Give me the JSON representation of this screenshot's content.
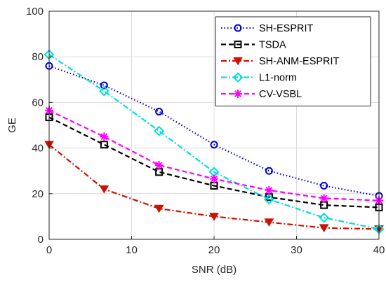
{
  "chart_data": {
    "type": "line",
    "title": "",
    "xlabel": "SNR (dB)",
    "ylabel": "GE",
    "xlim": [
      0,
      40
    ],
    "ylim": [
      0,
      100
    ],
    "xticks": [
      0,
      10,
      20,
      30,
      40
    ],
    "yticks": [
      0,
      20,
      40,
      60,
      80,
      100
    ],
    "grid": true,
    "legend_position": "top-right",
    "x": [
      0,
      6.67,
      13.33,
      20,
      26.67,
      33.33,
      40
    ],
    "series": [
      {
        "name": "SH-ESPRIT",
        "values": [
          76,
          67.5,
          56,
          41.5,
          30,
          23.5,
          19
        ],
        "color": "#0000cc",
        "line_style": "dotted",
        "marker": "circle"
      },
      {
        "name": "TSDA",
        "values": [
          53.5,
          41.5,
          29.5,
          23.5,
          18.5,
          15,
          14
        ],
        "color": "#000000",
        "line_style": "dashed",
        "marker": "square"
      },
      {
        "name": "SH-ANM-ESPRIT",
        "values": [
          41.5,
          22,
          13.5,
          10,
          7.5,
          5,
          4.5
        ],
        "color": "#cc1100",
        "line_style": "dashdot",
        "marker": "triangle-down"
      },
      {
        "name": "L1-norm",
        "values": [
          81,
          65,
          47.5,
          29.5,
          17.5,
          9.5,
          4.5
        ],
        "color": "#00dddd",
        "line_style": "dashdot",
        "marker": "diamond"
      },
      {
        "name": "CV-VSBL",
        "values": [
          56.5,
          45,
          32.5,
          26.5,
          21.5,
          18,
          17
        ],
        "color": "#ff00ff",
        "line_style": "dashed",
        "marker": "star"
      }
    ]
  }
}
